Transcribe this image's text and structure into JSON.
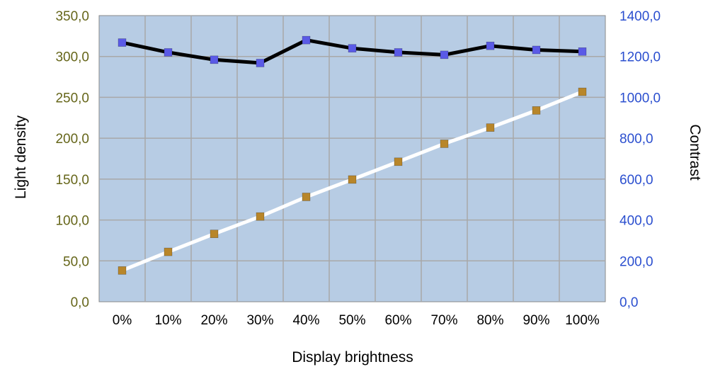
{
  "chart_data": {
    "type": "line",
    "title": "",
    "xlabel": "Display brightness",
    "ylabel": "Light density",
    "y2label": "Contrast",
    "categories": [
      "0%",
      "10%",
      "20%",
      "30%",
      "40%",
      "50%",
      "60%",
      "70%",
      "80%",
      "90%",
      "100%"
    ],
    "ylim": [
      0,
      350
    ],
    "y2lim": [
      0,
      1400
    ],
    "yticks": [
      "0,0",
      "50,0",
      "100,0",
      "150,0",
      "200,0",
      "250,0",
      "300,0",
      "350,0"
    ],
    "y2ticks": [
      "0,0",
      "200,0",
      "400,0",
      "600,0",
      "800,0",
      "1000,0",
      "1200,0",
      "1400,0"
    ],
    "grid": true,
    "series": [
      {
        "axis": "left",
        "line_color": "#000000",
        "marker_color": "#5a5ae6",
        "values": [
          317,
          305,
          296,
          292,
          320,
          310,
          305,
          302,
          313,
          308,
          306
        ]
      },
      {
        "axis": "right",
        "line_color": "#ffffff",
        "marker_color": "#b8862a",
        "values": [
          153,
          244,
          332,
          417,
          513,
          598,
          685,
          773,
          852,
          936,
          1027
        ]
      }
    ],
    "colors": {
      "plot_background": "#b7cce4",
      "grid": "#a8a8a8",
      "left_tick_labels": "#66661a",
      "right_tick_labels": "#2b4fcf",
      "category_labels": "#000000"
    }
  }
}
